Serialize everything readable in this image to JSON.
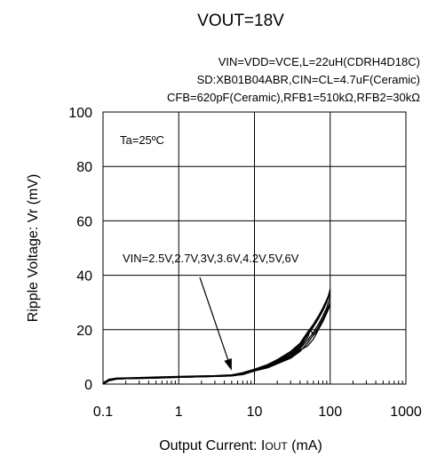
{
  "chart_data": {
    "type": "line",
    "title": "VOUT=18V",
    "conditions": [
      "VIN=VDD=VCE,L=22uH(CDRH4D18C)",
      "SD:XB01B04ABR,CIN=CL=4.7uF(Ceramic)",
      "CFB=620pF(Ceramic),RFB1=510kΩ,RFB2=30kΩ"
    ],
    "xlabel": "Output Current: IOUT (mA)",
    "xlabel_parts": {
      "prefix": "Output Current: ",
      "sym": "I",
      "sub": "OUT",
      "suffix": " (mA)"
    },
    "ylabel": "Ripple Voltage: Vr (mV)",
    "x_scale": "log",
    "xlim": [
      0.1,
      1000
    ],
    "ylim": [
      0,
      100
    ],
    "x_ticks": [
      0.1,
      1,
      10,
      100,
      1000
    ],
    "x_tick_labels": [
      "0.1",
      "1",
      "10",
      "100",
      "1000"
    ],
    "y_ticks": [
      0,
      20,
      40,
      60,
      80,
      100
    ],
    "y_tick_labels": [
      "0",
      "20",
      "40",
      "60",
      "80",
      "100"
    ],
    "grid": true,
    "ambient": "Ta=25ºC",
    "annotation": "VIN=2.5V,2.7V,3V,3.6V,4.2V,5V,6V",
    "annotation_arrow_target": [
      5,
      5
    ],
    "series": [
      {
        "x": [
          0.1,
          0.12,
          0.15,
          0.2,
          0.3,
          0.5,
          1,
          2,
          3,
          5,
          7,
          10,
          15,
          20,
          30,
          40,
          50,
          60,
          70,
          80,
          90,
          100
        ],
        "y": [
          0,
          1.5,
          2,
          2,
          2.2,
          2.3,
          2.5,
          2.7,
          2.8,
          3.0,
          3.8,
          5,
          6.5,
          8,
          10,
          13,
          16,
          19,
          22,
          25,
          28,
          32
        ]
      },
      {
        "x": [
          0.1,
          0.12,
          0.15,
          0.2,
          0.3,
          0.5,
          1,
          2,
          3,
          5,
          7,
          10,
          15,
          20,
          30,
          40,
          50,
          60,
          70,
          80,
          90,
          100
        ],
        "y": [
          0.5,
          1.8,
          2.1,
          2.2,
          2.3,
          2.5,
          2.7,
          2.9,
          3.0,
          3.2,
          4.0,
          5.2,
          7,
          8.5,
          11,
          14,
          18,
          21,
          24,
          27,
          30,
          35
        ]
      },
      {
        "x": [
          0.1,
          0.12,
          0.15,
          0.2,
          0.3,
          0.5,
          1,
          2,
          3,
          5,
          7,
          10,
          15,
          20,
          30,
          40,
          50,
          60,
          70,
          80,
          90,
          100
        ],
        "y": [
          0,
          1.2,
          1.8,
          2,
          2.1,
          2.3,
          2.6,
          2.8,
          2.9,
          3.1,
          3.5,
          4.8,
          6,
          7.5,
          9.5,
          12,
          15,
          18,
          20,
          23,
          26,
          29
        ]
      },
      {
        "x": [
          0.1,
          0.12,
          0.15,
          0.2,
          0.3,
          0.5,
          1,
          2,
          3,
          5,
          7,
          10,
          15,
          20,
          30,
          40,
          50,
          60,
          70,
          80,
          90,
          100
        ],
        "y": [
          0.3,
          1.6,
          2.0,
          2.1,
          2.2,
          2.4,
          2.6,
          2.8,
          3.0,
          3.3,
          4.2,
          5.5,
          7.2,
          9,
          12,
          15,
          19,
          22,
          25,
          28,
          31,
          34
        ]
      },
      {
        "x": [
          0.1,
          0.12,
          0.15,
          0.2,
          0.3,
          0.5,
          1,
          2,
          3,
          5,
          7,
          10,
          15,
          20,
          30,
          40,
          50,
          55,
          60,
          70,
          80,
          90,
          100
        ],
        "y": [
          0,
          1.4,
          1.9,
          2.0,
          2.2,
          2.3,
          2.5,
          2.7,
          2.9,
          3.2,
          3.9,
          5.0,
          6.8,
          8.2,
          10.5,
          13.5,
          17,
          20,
          18,
          21,
          24,
          27,
          29
        ]
      },
      {
        "x": [
          0.1,
          0.12,
          0.15,
          0.2,
          0.3,
          0.5,
          1,
          2,
          3,
          5,
          7,
          10,
          15,
          20,
          30,
          40,
          50,
          60,
          70,
          80,
          90,
          100
        ],
        "y": [
          0.2,
          1.7,
          2.2,
          2.3,
          2.4,
          2.6,
          2.8,
          3.0,
          3.1,
          3.4,
          4.1,
          5.3,
          7.1,
          8.8,
          11.5,
          14.5,
          18.5,
          21.5,
          24.5,
          27.5,
          30.5,
          33
        ]
      },
      {
        "x": [
          0.1,
          0.12,
          0.15,
          0.2,
          0.3,
          0.5,
          1,
          2,
          3,
          5,
          7,
          10,
          15,
          20,
          30,
          40,
          50,
          60,
          70,
          80,
          90,
          100
        ],
        "y": [
          0,
          1.3,
          1.9,
          2.0,
          2.1,
          2.2,
          2.5,
          2.7,
          2.8,
          3.0,
          3.6,
          4.9,
          6.3,
          7.8,
          10,
          12.5,
          14,
          16.5,
          20,
          23.5,
          27,
          30
        ]
      }
    ]
  }
}
